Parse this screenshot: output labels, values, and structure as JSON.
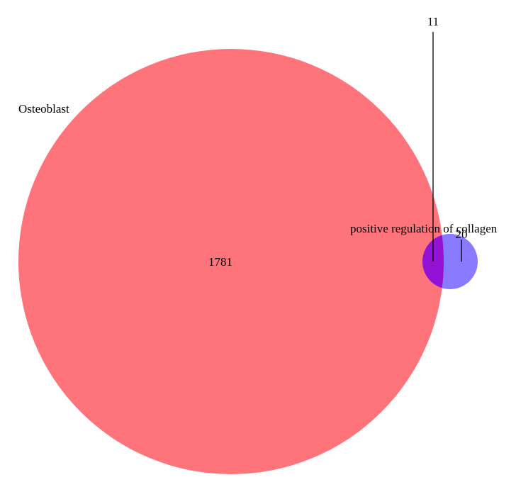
{
  "sets": [
    {
      "name": "Osteoblast",
      "color": "#ff737a"
    },
    {
      "name": "positive regulation of collagen",
      "color": "#8a7aff"
    }
  ],
  "overlap_color": "#9411d6",
  "counts": {
    "only_a": "1781",
    "a_and_b": "11",
    "only_b": "20"
  }
}
